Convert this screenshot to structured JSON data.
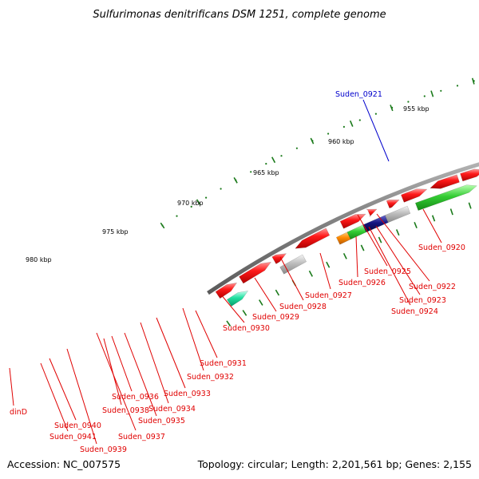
{
  "title": "Sulfurimonas denitrificans DSM 1251, complete genome",
  "footer": {
    "accession": "Accession: NC_007575",
    "topology": "Topology: circular; Length: 2,201,561 bp; Genes: 2,155"
  },
  "colors": {
    "forward_gene": "#ff0000",
    "reverse_gene": "#0000ff",
    "label_red": "#e00000",
    "label_blue": "#0000cc",
    "backbone": "#808080",
    "ticks": "#1a7a1a"
  },
  "ruler": [
    {
      "label": "955 kbp"
    },
    {
      "label": "960 kbp"
    },
    {
      "label": "965 kbp"
    },
    {
      "label": "970 kbp"
    },
    {
      "label": "975 kbp"
    },
    {
      "label": "980 kbp"
    }
  ],
  "gene_labels": [
    {
      "label": "Suden_0921"
    },
    {
      "label": "Suden_0920"
    },
    {
      "label": "Suden_0922"
    },
    {
      "label": "Suden_0923"
    },
    {
      "label": "Suden_0924"
    },
    {
      "label": "Suden_0925"
    },
    {
      "label": "Suden_0926"
    },
    {
      "label": "Suden_0927"
    },
    {
      "label": "Suden_0928"
    },
    {
      "label": "Suden_0929"
    },
    {
      "label": "Suden_0930"
    },
    {
      "label": "Suden_0931"
    },
    {
      "label": "Suden_0932"
    },
    {
      "label": "Suden_0933"
    },
    {
      "label": "Suden_0934"
    },
    {
      "label": "Suden_0935"
    },
    {
      "label": "Suden_0936"
    },
    {
      "label": "Suden_0937"
    },
    {
      "label": "Suden_0938"
    },
    {
      "label": "Suden_0939"
    },
    {
      "label": "Suden_0940"
    },
    {
      "label": "Suden_0941"
    },
    {
      "label": "dinD"
    }
  ]
}
